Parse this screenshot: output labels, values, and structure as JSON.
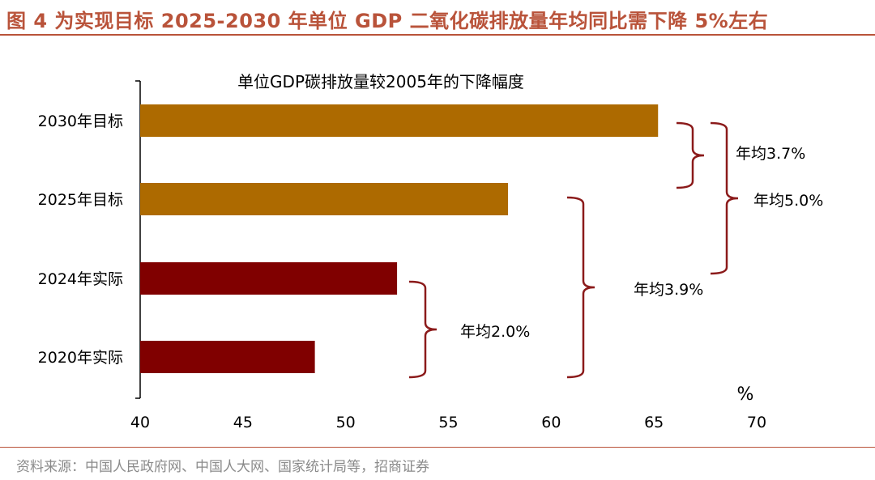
{
  "title": "图 4 为实现目标 2025-2030 年单位 GDP 二氧化碳排放量年均同比需下降 5%左右",
  "source": "资料来源：中国人民政府网、中国人大网、国家统计局等，招商证券",
  "chart_data": {
    "type": "bar",
    "orientation": "horizontal",
    "title": "单位GDP碳排放量较2005年的下降幅度",
    "categories": [
      "2030年目标",
      "2025年目标",
      "2024年实际",
      "2020年实际"
    ],
    "values": [
      65.2,
      57.9,
      52.5,
      48.5
    ],
    "colors": [
      "#AD6A00",
      "#AD6A00",
      "#800000",
      "#800000"
    ],
    "xlim": [
      40,
      70
    ],
    "xticks": [
      "40",
      "45",
      "50",
      "55",
      "60",
      "65",
      "70"
    ],
    "xunit": "%",
    "grid": false,
    "annotations": [
      {
        "text": "年均3.7%",
        "from": "2025年目标",
        "to": "2030年目标"
      },
      {
        "text": "年均5.0%",
        "from": "2024年实际",
        "to": "2030年目标"
      },
      {
        "text": "年均3.9%",
        "from": "2020年实际",
        "to": "2025年目标"
      },
      {
        "text": "年均2.0%",
        "from": "2020年实际",
        "to": "2024年实际"
      }
    ],
    "bracket_colors": {
      "future": "#8B1A1A",
      "actual": "#8B1A1A"
    }
  }
}
